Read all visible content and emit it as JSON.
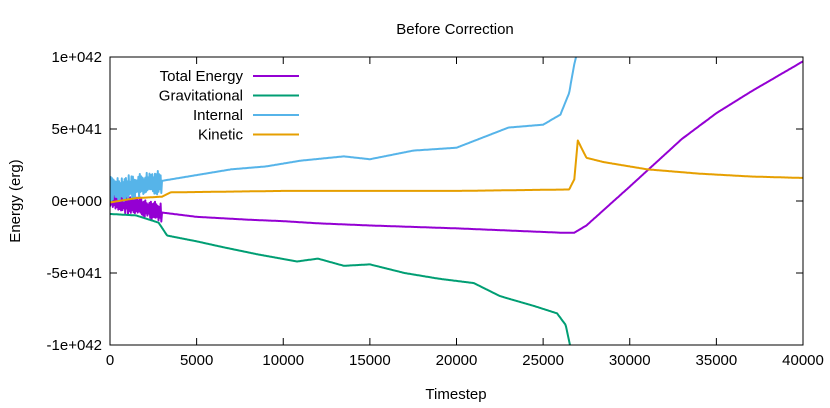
{
  "chart_data": {
    "type": "line",
    "title": "Before Correction",
    "xlabel": "Timestep",
    "ylabel": "Energy (erg)",
    "xlim": [
      0,
      40000
    ],
    "ylim": [
      -1e+42,
      1e+42
    ],
    "xticks": [
      {
        "value": 0,
        "label": "0"
      },
      {
        "value": 5000,
        "label": "5000"
      },
      {
        "value": 10000,
        "label": "10000"
      },
      {
        "value": 15000,
        "label": "15000"
      },
      {
        "value": 20000,
        "label": "20000"
      },
      {
        "value": 25000,
        "label": "25000"
      },
      {
        "value": 30000,
        "label": "30000"
      },
      {
        "value": 35000,
        "label": "35000"
      },
      {
        "value": 40000,
        "label": "40000"
      }
    ],
    "yticks": [
      {
        "value": -1e+42,
        "label": "-1e+042"
      },
      {
        "value": -5e+41,
        "label": "-5e+041"
      },
      {
        "value": 0,
        "label": "0e+000"
      },
      {
        "value": 5e+41,
        "label": "5e+041"
      },
      {
        "value": 1e+42,
        "label": "1e+042"
      }
    ],
    "legend_position": "top-left",
    "series": [
      {
        "name": "Total Energy",
        "color": "#9400d3",
        "noise": {
          "until": 3000,
          "amp": 7e+40
        },
        "points": [
          [
            0,
            1e+40
          ],
          [
            1000,
            -2e+40
          ],
          [
            3000,
            -8e+40
          ],
          [
            5000,
            -1.1e+41
          ],
          [
            8000,
            -1.3e+41
          ],
          [
            10000,
            -1.4e+41
          ],
          [
            12000,
            -1.55e+41
          ],
          [
            15000,
            -1.7e+41
          ],
          [
            20000,
            -1.9e+41
          ],
          [
            24000,
            -2.1e+41
          ],
          [
            26000,
            -2.2e+41
          ],
          [
            26800,
            -2.2e+41
          ],
          [
            27500,
            -1.7e+41
          ],
          [
            30000,
            1e+41
          ],
          [
            33000,
            4.3e+41
          ],
          [
            35000,
            6.1e+41
          ],
          [
            37000,
            7.6e+41
          ],
          [
            40000,
            9.7e+41
          ]
        ]
      },
      {
        "name": "Gravitational",
        "color": "#009e73",
        "noise": {
          "until": 0,
          "amp": 0
        },
        "points": [
          [
            0,
            -9e+40
          ],
          [
            1500,
            -1e+41
          ],
          [
            2800,
            -1.5e+41
          ],
          [
            3300,
            -2.4e+41
          ],
          [
            5000,
            -2.8e+41
          ],
          [
            6500,
            -3.2e+41
          ],
          [
            8500,
            -3.7e+41
          ],
          [
            10800,
            -4.2e+41
          ],
          [
            12000,
            -4e+41
          ],
          [
            13500,
            -4.5e+41
          ],
          [
            15000,
            -4.4e+41
          ],
          [
            17000,
            -5e+41
          ],
          [
            19000,
            -5.4e+41
          ],
          [
            21000,
            -5.7e+41
          ],
          [
            22500,
            -6.6e+41
          ],
          [
            24500,
            -7.3e+41
          ],
          [
            25800,
            -7.8e+41
          ],
          [
            26300,
            -8.6e+41
          ],
          [
            26600,
            -1.03e+42
          ]
        ]
      },
      {
        "name": "Internal",
        "color": "#56b4e9",
        "noise": {
          "until": 3000,
          "amp": 9e+40
        },
        "points": [
          [
            0,
            8e+40
          ],
          [
            1500,
            1e+41
          ],
          [
            3000,
            1.4e+41
          ],
          [
            5000,
            1.8e+41
          ],
          [
            7000,
            2.2e+41
          ],
          [
            9000,
            2.4e+41
          ],
          [
            11000,
            2.8e+41
          ],
          [
            13500,
            3.1e+41
          ],
          [
            15000,
            2.9e+41
          ],
          [
            17500,
            3.5e+41
          ],
          [
            20000,
            3.7e+41
          ],
          [
            21500,
            4.4e+41
          ],
          [
            23000,
            5.1e+41
          ],
          [
            25000,
            5.3e+41
          ],
          [
            26000,
            6e+41
          ],
          [
            26500,
            7.5e+41
          ],
          [
            26800,
            9.5e+41
          ],
          [
            27000,
            1.05e+42
          ]
        ]
      },
      {
        "name": "Kinetic",
        "color": "#e69f00",
        "noise": {
          "until": 0,
          "amp": 0
        },
        "points": [
          [
            0,
            -1e+40
          ],
          [
            1500,
            2e+40
          ],
          [
            3000,
            3e+40
          ],
          [
            3500,
            6e+40
          ],
          [
            10000,
            7e+40
          ],
          [
            20000,
            7e+40
          ],
          [
            26500,
            8e+40
          ],
          [
            26800,
            1.5e+41
          ],
          [
            27000,
            4.2e+41
          ],
          [
            27500,
            3e+41
          ],
          [
            28500,
            2.7e+41
          ],
          [
            31000,
            2.2e+41
          ],
          [
            34000,
            1.9e+41
          ],
          [
            37000,
            1.7e+41
          ],
          [
            40000,
            1.6e+41
          ]
        ]
      }
    ]
  }
}
